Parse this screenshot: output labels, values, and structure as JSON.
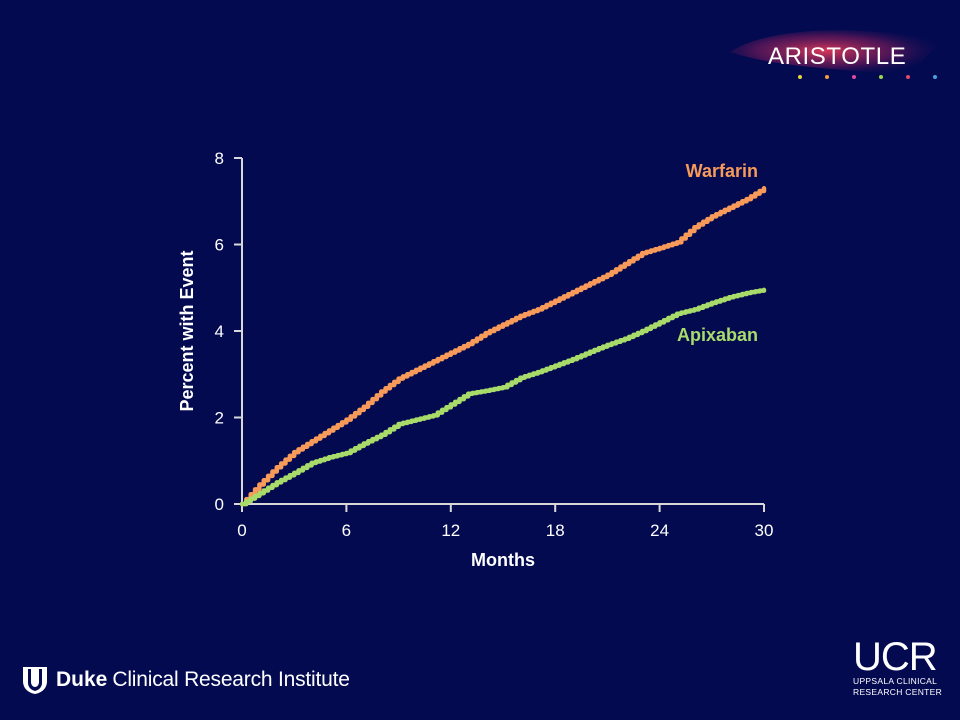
{
  "brand": {
    "aristotle_logo_text": "ARISTOTLE",
    "duke_bold": "Duke",
    "duke_rest": "Clinical Research Institute",
    "ucr_big": "UCR",
    "ucr_line1": "UPPSALA CLINICAL",
    "ucr_line2": "RESEARCH CENTER"
  },
  "colors": {
    "background": "#030a50",
    "warfarin": "#f79a5a",
    "apixaban": "#a8db6a",
    "axis": "#d8d8d8"
  },
  "chart_data": {
    "type": "line",
    "title": "",
    "xlabel": "Months",
    "ylabel": "Percent with Event",
    "xlim": [
      0,
      30
    ],
    "ylim": [
      0,
      8
    ],
    "xticks": [
      "0",
      "6",
      "12",
      "18",
      "24",
      "30"
    ],
    "yticks": [
      "0",
      "2",
      "4",
      "6",
      "8"
    ],
    "grid": false,
    "series": [
      {
        "name": "Warfarin",
        "color": "#f79a5a",
        "x": [
          0,
          1,
          2,
          3,
          4,
          5,
          6,
          7,
          8,
          9,
          10,
          11,
          12,
          13,
          14,
          15,
          16,
          17,
          18,
          19,
          20,
          21,
          22,
          23,
          24,
          25,
          26,
          27,
          28,
          29,
          30
        ],
        "y": [
          0,
          0.45,
          0.85,
          1.2,
          1.45,
          1.7,
          1.95,
          2.25,
          2.6,
          2.9,
          3.1,
          3.3,
          3.5,
          3.7,
          3.95,
          4.15,
          4.35,
          4.5,
          4.7,
          4.9,
          5.1,
          5.3,
          5.55,
          5.8,
          5.92,
          6.05,
          6.4,
          6.65,
          6.85,
          7.05,
          7.3
        ]
      },
      {
        "name": "Apixaban",
        "color": "#a8db6a",
        "x": [
          0,
          1,
          2,
          3,
          4,
          5,
          6,
          7,
          8,
          9,
          10,
          11,
          12,
          13,
          14,
          15,
          16,
          17,
          18,
          19,
          20,
          21,
          22,
          23,
          24,
          25,
          26,
          27,
          28,
          29,
          30
        ],
        "y": [
          0,
          0.25,
          0.5,
          0.72,
          0.95,
          1.08,
          1.18,
          1.4,
          1.6,
          1.85,
          1.95,
          2.05,
          2.3,
          2.55,
          2.62,
          2.7,
          2.92,
          3.05,
          3.2,
          3.35,
          3.52,
          3.68,
          3.82,
          4.0,
          4.2,
          4.4,
          4.5,
          4.65,
          4.78,
          4.88,
          4.95
        ]
      }
    ]
  }
}
